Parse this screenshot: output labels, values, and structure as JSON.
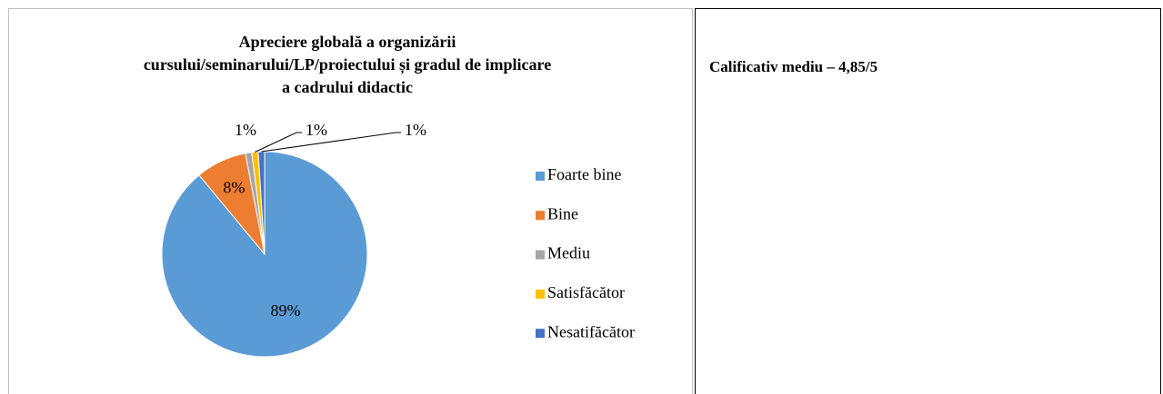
{
  "chart_data": {
    "type": "pie",
    "title": "Apreciere globală a organizării cursului/seminarului/LP/proiectului și gradul de implicare a cadrului didactic",
    "categories": [
      "Foarte bine",
      "Bine",
      "Mediu",
      "Satisfăcător",
      "Nesatifăcător"
    ],
    "values": [
      89,
      8,
      1,
      1,
      1
    ],
    "value_labels": [
      "89%",
      "8%",
      "1%",
      "1%",
      "1%"
    ],
    "colors": [
      "#5b9bd5",
      "#ed7d31",
      "#a5a5a5",
      "#ffc000",
      "#4472c4"
    ],
    "legend": "right"
  },
  "cell_text": "Calificativ mediu – 4,85/5"
}
